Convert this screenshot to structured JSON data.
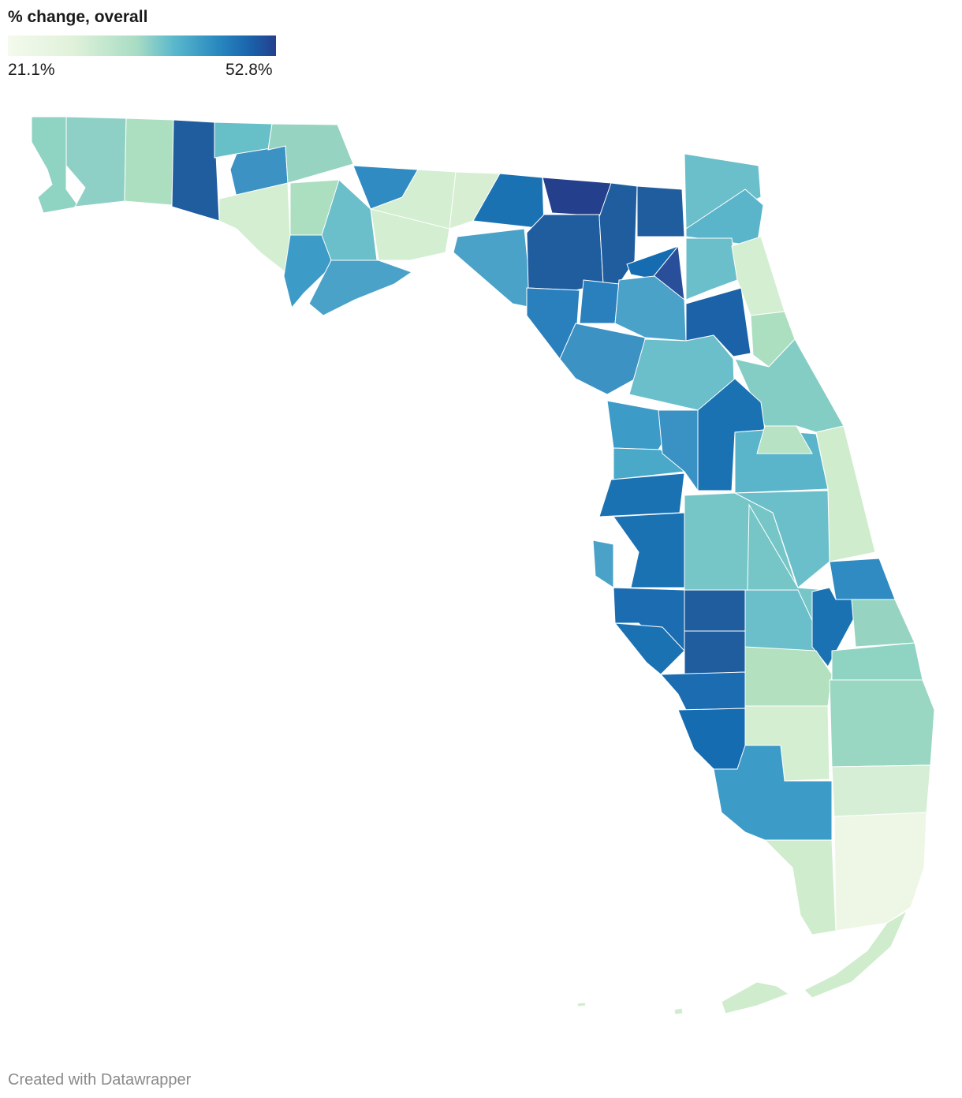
{
  "legend": {
    "title": "% change, overall",
    "min_label": "21.1%",
    "max_label": "52.8%",
    "min_value": 21.1,
    "max_value": 52.8,
    "colors": [
      "#f4faed",
      "#dff1d9",
      "#a8dcc4",
      "#5ab8cc",
      "#2a8ac0",
      "#1a64ac",
      "#253f8e"
    ]
  },
  "footer": {
    "credit": "Created with Datawrapper"
  },
  "map": {
    "region": "Florida",
    "shading": "counties by % change, overall"
  }
}
